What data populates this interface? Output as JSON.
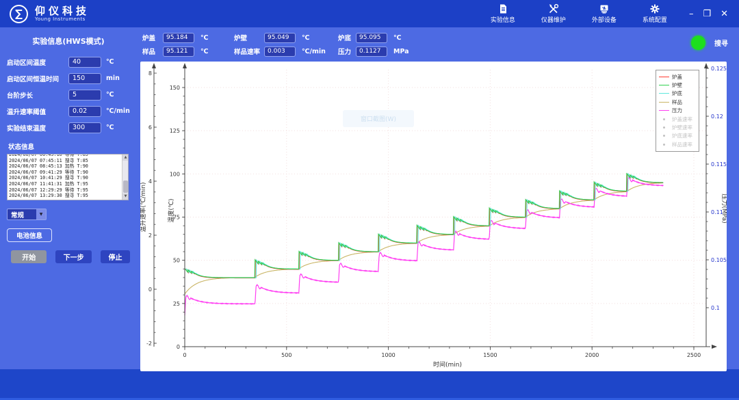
{
  "titlebar": {
    "brand_cn": "仰仪科技",
    "brand_en": "Young Instruments",
    "menu": [
      {
        "label": "实验信息",
        "icon": "document-icon"
      },
      {
        "label": "仪器维护",
        "icon": "tools-icon"
      },
      {
        "label": "外部设备",
        "icon": "device-icon"
      },
      {
        "label": "系统配置",
        "icon": "gear-icon"
      }
    ],
    "window_controls": {
      "minimize": "–",
      "maximize": "❒",
      "close": "✕"
    }
  },
  "sidebar": {
    "title": "实验信息(HWS模式)",
    "fields": [
      {
        "label": "启动区间温度",
        "value": "40",
        "unit": "℃"
      },
      {
        "label": "启动区间恒温时间",
        "value": "150",
        "unit": "min"
      },
      {
        "label": "台阶步长",
        "value": "5",
        "unit": "℃"
      },
      {
        "label": "温升速率阈值",
        "value": "0.02",
        "unit": "℃/min"
      },
      {
        "label": "实验结束温度",
        "value": "300",
        "unit": "℃"
      }
    ],
    "status_label": "状态信息",
    "status_log": [
      "2024/06/07 06:45:10 等待 T:85",
      "2024/06/07 07:45:11 搜寻 T:85",
      "2024/06/07 08:45:13 加热 T:90",
      "2024/06/07 09:41:29 等待 T:90",
      "2024/06/07 10:41:29 搜寻 T:90",
      "2024/06/07 11:41:31 加热 T:95",
      "2024/06/07 12:29:29 等待 T:95",
      "2024/06/07 13:29:30 搜寻 T:95"
    ],
    "mode_value": "常规",
    "battery_button": "电池信息",
    "start_button": "开始",
    "next_button": "下一步",
    "stop_button": "停止"
  },
  "readings": {
    "row1": [
      {
        "label": "炉盖",
        "value": "95.184",
        "unit": "℃"
      },
      {
        "label": "炉壁",
        "value": "95.049",
        "unit": "℃"
      },
      {
        "label": "炉底",
        "value": "95.095",
        "unit": "℃"
      }
    ],
    "row2": [
      {
        "label": "样品",
        "value": "95.121",
        "unit": "℃"
      },
      {
        "label": "样品速率",
        "value": "0.003",
        "unit": "℃/min"
      },
      {
        "label": "压力",
        "value": "0.1127",
        "unit": "MPa"
      }
    ],
    "indicator_label": "搜寻",
    "indicator_color": "#1ddf1d"
  },
  "watermark": "窗口截图(W)",
  "chart_data": {
    "type": "line",
    "xlabel": "时间(min)",
    "x_range": [
      0,
      2600
    ],
    "x_ticks": [
      0,
      500,
      1000,
      1500,
      2000,
      2500
    ],
    "y_axes": [
      {
        "id": "rate",
        "label": "温升速率(℃/min)",
        "range": [
          -2,
          8
        ],
        "ticks": [
          -2,
          0,
          2,
          4,
          6,
          8
        ],
        "side": "left-outer"
      },
      {
        "id": "temp",
        "label": "温度(℃)",
        "range": [
          0,
          160
        ],
        "ticks": [
          0,
          25,
          50,
          75,
          100,
          125,
          150
        ],
        "side": "left"
      },
      {
        "id": "pressure",
        "label": "压力(MPa)",
        "range": [
          0.096,
          0.1265
        ],
        "ticks": [
          0.1,
          0.105,
          0.11,
          0.115,
          0.12,
          0.125
        ],
        "side": "right",
        "tick_color": "#2233cc"
      }
    ],
    "legend_position": "top-right",
    "grid": true,
    "grid_color": "#f2dede",
    "legend": [
      {
        "label": "炉盖",
        "color": "#ff3b30",
        "active": true
      },
      {
        "label": "炉壁",
        "color": "#2fd14f",
        "active": true
      },
      {
        "label": "炉底",
        "color": "#5ce8dd",
        "active": true
      },
      {
        "label": "样品",
        "color": "#c9b464",
        "active": true
      },
      {
        "label": "压力",
        "color": "#ff3df2",
        "active": true
      },
      {
        "label": "炉盖速率",
        "color": "#c0c0c0",
        "active": false
      },
      {
        "label": "炉壁速率",
        "color": "#c0c0c0",
        "active": false
      },
      {
        "label": "炉底速率",
        "color": "#c0c0c0",
        "active": false
      },
      {
        "label": "样品速率",
        "color": "#c0c0c0",
        "active": false
      }
    ],
    "hws_steps": [
      {
        "t": 0,
        "temp": 40,
        "pressure": 0.1004
      },
      {
        "t": 345,
        "temp": 45,
        "pressure": 0.10152
      },
      {
        "t": 560,
        "temp": 50,
        "pressure": 0.10264
      },
      {
        "t": 755,
        "temp": 55,
        "pressure": 0.10376
      },
      {
        "t": 950,
        "temp": 60,
        "pressure": 0.10488
      },
      {
        "t": 1140,
        "temp": 65,
        "pressure": 0.106
      },
      {
        "t": 1320,
        "temp": 70,
        "pressure": 0.10712
      },
      {
        "t": 1495,
        "temp": 75,
        "pressure": 0.10824
      },
      {
        "t": 1673,
        "temp": 80,
        "pressure": 0.10936
      },
      {
        "t": 1840,
        "temp": 85,
        "pressure": 0.11048
      },
      {
        "t": 2010,
        "temp": 90,
        "pressure": 0.1116
      },
      {
        "t": 2170,
        "temp": 95,
        "pressure": 0.11272
      }
    ],
    "t_end": 2350,
    "sample_start_temp": 30,
    "pressure_start": 0.0992,
    "spike": {
      "height": 5.3,
      "teeth": 3,
      "saw_minutes": 48,
      "decay_tau": 32
    },
    "furnace_offsets": [
      {
        "series": "炉盖",
        "dt": 2,
        "dT": -0.25
      },
      {
        "series": "炉底",
        "dt": 7,
        "dT": -0.1
      },
      {
        "series": "炉壁",
        "dt": 0,
        "dT": 0
      }
    ]
  }
}
